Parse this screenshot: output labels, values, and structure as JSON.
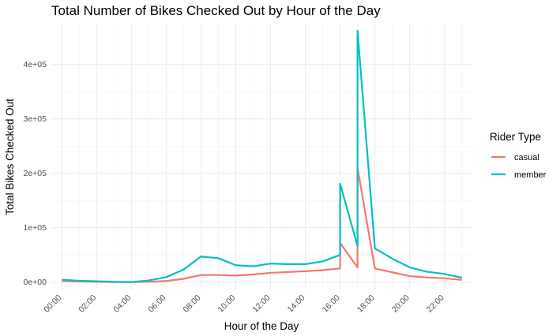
{
  "chart_data": {
    "type": "line",
    "title": "Total Number of Bikes Checked Out by Hour of the Day",
    "xlabel": "Hour of the Day",
    "ylabel": "Total Bikes Checked Out",
    "ylim": [
      -15000,
      475000
    ],
    "y_ticks": [
      0,
      100000,
      200000,
      300000,
      400000
    ],
    "y_tick_labels": [
      "0e+00",
      "1e+05",
      "2e+05",
      "3e+05",
      "4e+05"
    ],
    "x_range": [
      -0.6,
      23.6
    ],
    "x_tick_labels": [
      "00:00",
      "02:00",
      "04:00",
      "06:00",
      "08:00",
      "10:00",
      "12:00",
      "14:00",
      "16:00",
      "18:00",
      "20:00",
      "22:00"
    ],
    "x_tick_hours": [
      0,
      2,
      4,
      6,
      8,
      10,
      12,
      14,
      16,
      18,
      20,
      22
    ],
    "grid": true,
    "legend": {
      "title": "Rider Type",
      "position": "right"
    },
    "series": [
      {
        "name": "casual",
        "color": "#F8766D",
        "points": [
          [
            0,
            2000
          ],
          [
            1,
            1000
          ],
          [
            2,
            500
          ],
          [
            3,
            0
          ],
          [
            4,
            0
          ],
          [
            5,
            500
          ],
          [
            6,
            2000
          ],
          [
            7,
            6000
          ],
          [
            8,
            13000
          ],
          [
            9,
            13000
          ],
          [
            10,
            12000
          ],
          [
            11,
            14000
          ],
          [
            12,
            17000
          ],
          [
            13,
            18500
          ],
          [
            14,
            20000
          ],
          [
            15,
            22000
          ],
          [
            16,
            25000
          ],
          [
            16,
            72000
          ],
          [
            17,
            27000
          ],
          [
            17,
            210000
          ],
          [
            18,
            25000
          ],
          [
            19,
            18000
          ],
          [
            20,
            11000
          ],
          [
            21,
            8500
          ],
          [
            22,
            7000
          ],
          [
            23,
            4000
          ]
        ]
      },
      {
        "name": "member",
        "color": "#00BFC4",
        "points": [
          [
            0,
            4500
          ],
          [
            1,
            2500
          ],
          [
            2,
            1500
          ],
          [
            3,
            500
          ],
          [
            4,
            0
          ],
          [
            5,
            3000
          ],
          [
            6,
            9000
          ],
          [
            7,
            23000
          ],
          [
            8,
            47000
          ],
          [
            9,
            44000
          ],
          [
            10,
            31000
          ],
          [
            11,
            29000
          ],
          [
            12,
            34000
          ],
          [
            13,
            33000
          ],
          [
            14,
            33000
          ],
          [
            15,
            38000
          ],
          [
            16,
            50000
          ],
          [
            16,
            181000
          ],
          [
            17,
            66000
          ],
          [
            17,
            462000
          ],
          [
            18,
            62000
          ],
          [
            19,
            43000
          ],
          [
            20,
            27000
          ],
          [
            21,
            19000
          ],
          [
            22,
            15000
          ],
          [
            23,
            8000
          ]
        ]
      }
    ]
  }
}
